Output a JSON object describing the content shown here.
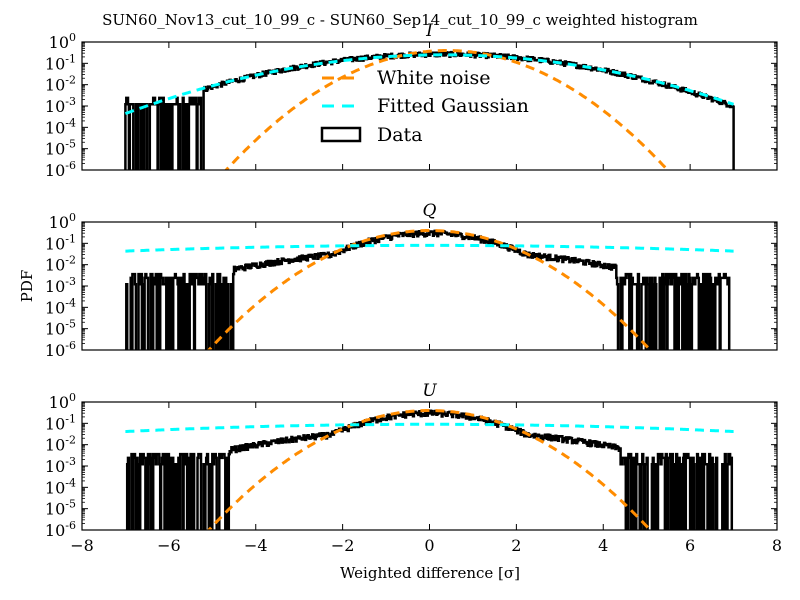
{
  "chart_data": {
    "type": "line",
    "title": "SUN60_Nov13_cut_10_99_c - SUN60_Sep14_cut_10_99_c weighted histogram",
    "xlabel": "Weighted difference [σ]",
    "ylabel": "PDF",
    "xlim": [
      -8,
      8
    ],
    "xticks": [
      "−8",
      "−6",
      "−4",
      "−2",
      "0",
      "2",
      "4",
      "6",
      "8"
    ],
    "xtick_values": [
      -8,
      -6,
      -4,
      -2,
      0,
      2,
      4,
      6,
      8
    ],
    "yscale": "log",
    "ylim": [
      1e-06,
      1
    ],
    "yticks": [
      {
        "base": "10",
        "exp": "0",
        "value": 1
      },
      {
        "base": "10",
        "exp": "-1",
        "value": 0.1
      },
      {
        "base": "10",
        "exp": "-2",
        "value": 0.01
      },
      {
        "base": "10",
        "exp": "-3",
        "value": 0.001
      },
      {
        "base": "10",
        "exp": "-4",
        "value": 0.0001
      },
      {
        "base": "10",
        "exp": "-5",
        "value": 1e-05
      },
      {
        "base": "10",
        "exp": "-6",
        "value": 1e-06
      }
    ],
    "legend": {
      "placement": "upper-center (panel I)",
      "entries": [
        {
          "label": "White noise",
          "style": "dashed",
          "color": "#ff8c00"
        },
        {
          "label": "Fitted Gaussian",
          "style": "dashed",
          "color": "#00ffff"
        },
        {
          "label": "Data",
          "style": "step-histogram",
          "color": "#000000"
        }
      ]
    },
    "data_range": [
      -7,
      7
    ],
    "data_floor_level": 0.0012,
    "panels": [
      {
        "name": "I",
        "series": [
          {
            "name": "White noise",
            "kind": "gaussian",
            "mean": 0.4,
            "sigma": 1.0,
            "peak": 0.4
          },
          {
            "name": "Fitted Gaussian",
            "kind": "gaussian",
            "mean": 0.3,
            "sigma": 2.05,
            "peak": 0.25
          },
          {
            "name": "Data",
            "kind": "histogram",
            "peak": 0.27,
            "value_at_-7": 0.0012,
            "value_at_7": 0.005,
            "tail_sigma": 2.0
          }
        ]
      },
      {
        "name": "Q",
        "series": [
          {
            "name": "White noise",
            "kind": "gaussian",
            "mean": 0.0,
            "sigma": 1.0,
            "peak": 0.4
          },
          {
            "name": "Fitted Gaussian",
            "kind": "gaussian",
            "mean": 0.0,
            "sigma": 6.3,
            "peak": 0.08
          },
          {
            "name": "Data",
            "kind": "histogram",
            "peak": 0.3,
            "value_at_-7": 0.0012,
            "value_at_7": 0.0012,
            "tail_sigma": 1.2
          }
        ]
      },
      {
        "name": "U",
        "series": [
          {
            "name": "White noise",
            "kind": "gaussian",
            "mean": 0.0,
            "sigma": 1.0,
            "peak": 0.4
          },
          {
            "name": "Fitted Gaussian",
            "kind": "gaussian",
            "mean": 0.0,
            "sigma": 5.6,
            "peak": 0.09
          },
          {
            "name": "Data",
            "kind": "histogram",
            "peak": 0.3,
            "value_at_-7": 0.0012,
            "value_at_7": 0.0012,
            "tail_sigma": 1.2
          }
        ]
      }
    ],
    "colors": {
      "white_noise": "#ff8c00",
      "fitted_gaussian": "#00ffff",
      "data": "#000000"
    }
  }
}
